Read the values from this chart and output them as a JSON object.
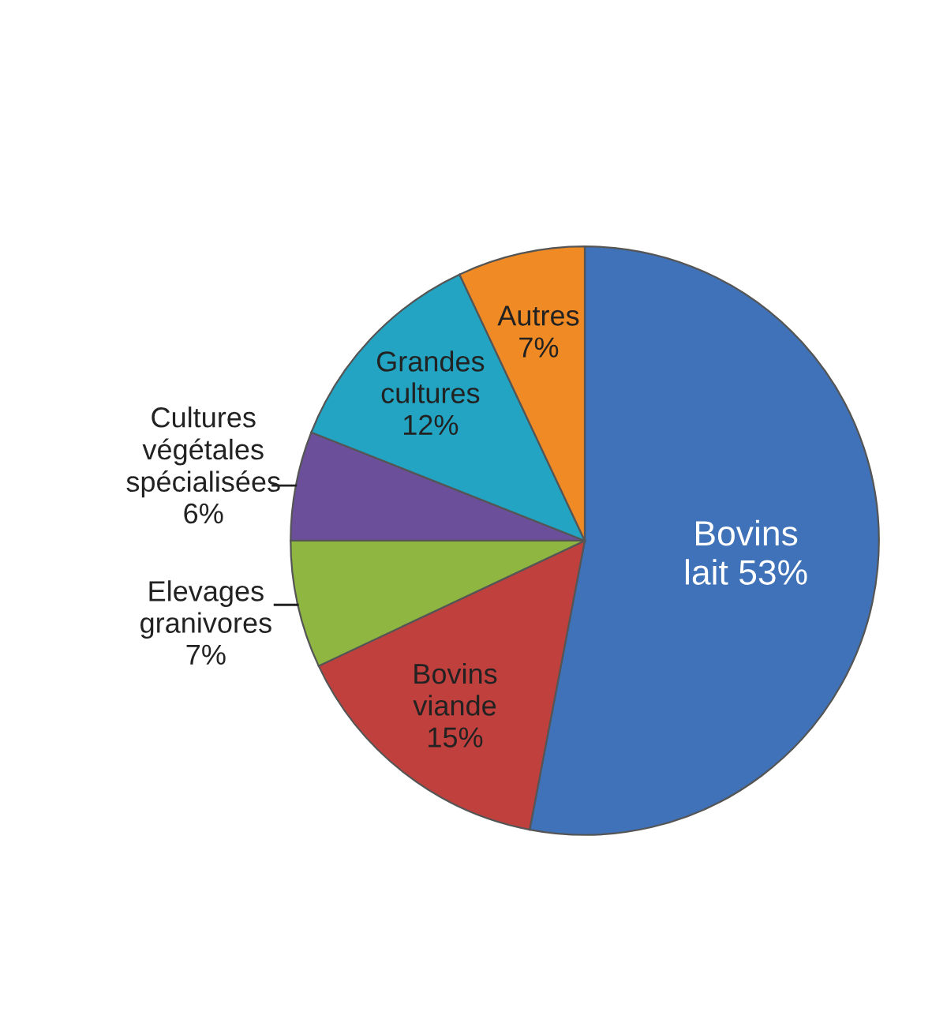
{
  "chart_data": {
    "type": "pie",
    "categories": [
      "Bovins lait",
      "Bovins viande",
      "Elevages granivores",
      "Cultures végétales spécialisées",
      "Grandes cultures",
      "Autres"
    ],
    "values": [
      53,
      15,
      7,
      6,
      12,
      7
    ],
    "value_labels": [
      "53%",
      "15%",
      "7%",
      "6%",
      "12%",
      "7%"
    ],
    "colors": [
      "#3f72b8",
      "#c0403d",
      "#8fb640",
      "#6b4f9a",
      "#22a4c2",
      "#f08a24"
    ]
  }
}
